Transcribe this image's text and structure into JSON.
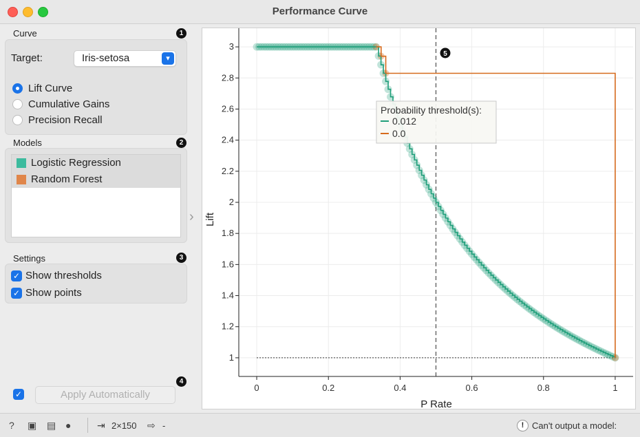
{
  "window": {
    "title": "Performance Curve"
  },
  "curve_section": {
    "label": "Curve",
    "badge": "1",
    "target_label": "Target:",
    "target_value": "Iris-setosa",
    "options": [
      "Lift Curve",
      "Cumulative Gains",
      "Precision Recall"
    ],
    "selected_index": 0
  },
  "models_section": {
    "label": "Models",
    "badge": "2",
    "items": [
      {
        "label": "Logistic Regression",
        "color": "#3dbb9e"
      },
      {
        "label": "Random Forest",
        "color": "#e0864a"
      }
    ]
  },
  "settings_section": {
    "label": "Settings",
    "badge": "3",
    "show_thresholds_label": "Show thresholds",
    "show_points_label": "Show points"
  },
  "apply": {
    "badge": "4",
    "label": "Apply Automatically"
  },
  "plot_badge": "5",
  "tooltip": {
    "title": "Probability threshold(s):",
    "entries": [
      {
        "value": "0.012",
        "color": "#1f9e7a"
      },
      {
        "value": "0.0",
        "color": "#d66a1c"
      }
    ]
  },
  "statusbar": {
    "data_size": "2×150",
    "output": "-",
    "warning": "Can't output a model:"
  },
  "chart_data": {
    "type": "line",
    "xlabel": "P Rate",
    "ylabel": "Lift",
    "xlim": [
      -0.05,
      1.05
    ],
    "ylim": [
      0.88,
      3.12
    ],
    "xticks": [
      0,
      0.2,
      0.4,
      0.6,
      0.8,
      1
    ],
    "xtick_labels": [
      "0",
      "0.2",
      "0.4",
      "0.6",
      "0.8",
      "1"
    ],
    "yticks": [
      1,
      1.2,
      1.4,
      1.6,
      1.8,
      2,
      2.2,
      2.4,
      2.6,
      2.8,
      3
    ],
    "ytick_labels": [
      "1",
      "1.2",
      "1.4",
      "1.6",
      "1.8",
      "2",
      "2.2",
      "2.4",
      "2.6",
      "2.8",
      "3"
    ],
    "grid": true,
    "vline_x": 0.5,
    "baseline_y": 1,
    "series": [
      {
        "name": "Logistic Regression",
        "color": "#1f9e7a",
        "x": [
          0.0,
          0.333,
          0.34,
          0.36,
          0.38,
          0.4,
          0.44,
          0.5,
          0.56,
          0.6,
          0.7,
          0.8,
          0.9,
          1.0
        ],
        "y": [
          3.0,
          3.0,
          2.94,
          2.78,
          2.63,
          2.5,
          2.27,
          2.0,
          1.79,
          1.667,
          1.429,
          1.25,
          1.111,
          1.0
        ]
      },
      {
        "name": "Random Forest",
        "color": "#d66a1c",
        "x": [
          0.333,
          0.34,
          0.347,
          0.353,
          0.36,
          1.0,
          1.0
        ],
        "y": [
          3.0,
          3.0,
          2.94,
          2.94,
          2.83,
          2.83,
          1.0
        ]
      }
    ]
  }
}
